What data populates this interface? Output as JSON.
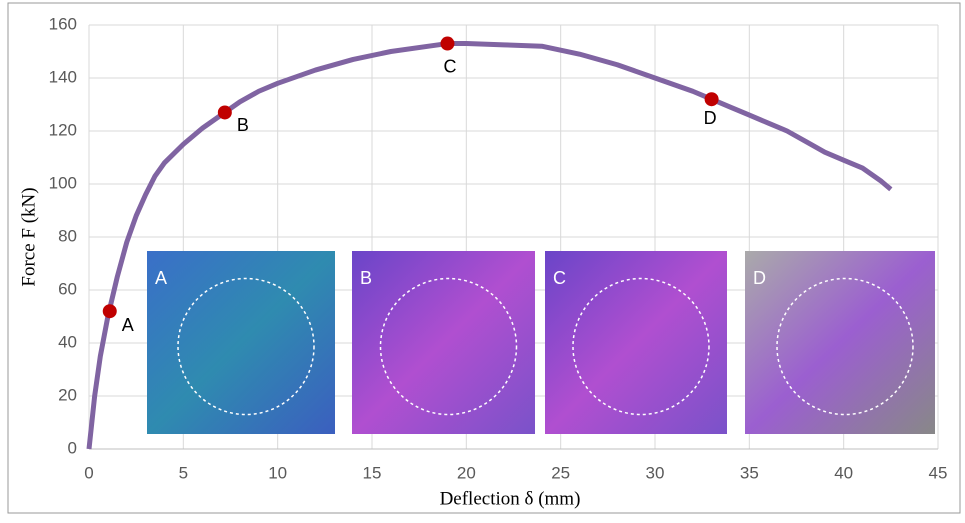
{
  "chart_data": {
    "type": "line",
    "x_label": "Deflection δ (mm)",
    "y_label": "Force F (kN)",
    "x": [
      0,
      0.3,
      0.6,
      1,
      1.5,
      2,
      2.5,
      3,
      3.5,
      4,
      5,
      6,
      7,
      8,
      9,
      10,
      12,
      14,
      16,
      18,
      19,
      20,
      22,
      24,
      26,
      28,
      30,
      32,
      33,
      34,
      35,
      36,
      37,
      38,
      39,
      40,
      41,
      42,
      42.5
    ],
    "series": [
      {
        "color": "#8064a2",
        "values": [
          0,
          20,
          35,
          50,
          65,
          78,
          88,
          96,
          103,
          108,
          115,
          121,
          126,
          131,
          135,
          138,
          143,
          147,
          150,
          152,
          153,
          153,
          152.5,
          152,
          149,
          145,
          140,
          135,
          132,
          129,
          126,
          123,
          120,
          116,
          112,
          109,
          106,
          101,
          98
        ]
      }
    ],
    "points": [
      {
        "x": 1.1,
        "y": 52,
        "label": "A"
      },
      {
        "x": 7.2,
        "y": 127,
        "label": "B"
      },
      {
        "x": 19,
        "y": 153,
        "label": "C"
      },
      {
        "x": 33,
        "y": 132,
        "label": "D"
      }
    ],
    "point_color": "#c00000",
    "insets": [
      "A",
      "B",
      "C",
      "D"
    ],
    "xlim": [
      0,
      45
    ],
    "xticks": [
      0,
      5,
      10,
      15,
      20,
      25,
      30,
      35,
      40,
      45
    ],
    "ylim": [
      0,
      160
    ],
    "yticks": [
      0,
      20,
      40,
      60,
      80,
      100,
      120,
      140,
      160
    ],
    "grid": true
  }
}
